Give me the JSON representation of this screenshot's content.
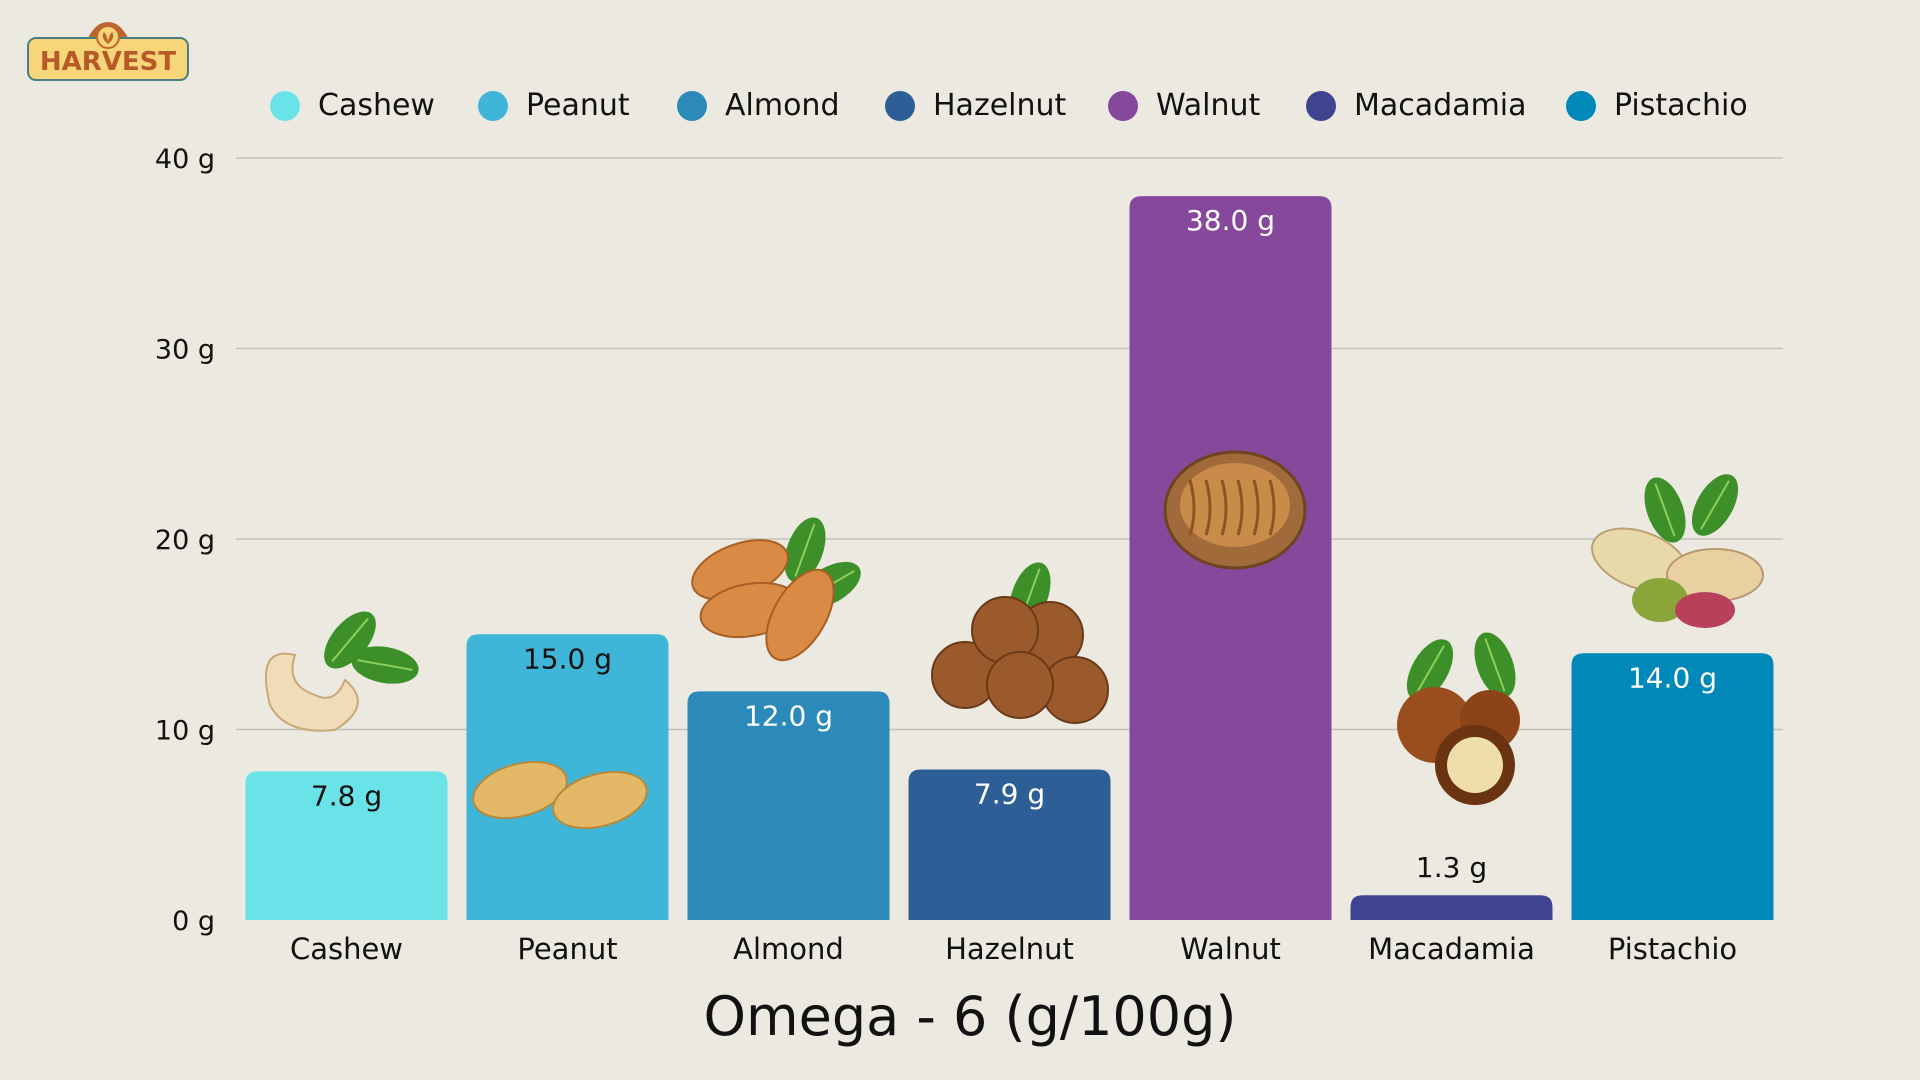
{
  "logo_text": "HARVEST",
  "chart_data": {
    "type": "bar",
    "title": "Omega - 6 (g/100g)",
    "xlabel": "Omega - 6 (g/100g)",
    "ylabel": "",
    "categories": [
      "Cashew",
      "Peanut",
      "Almond",
      "Hazelnut",
      "Walnut",
      "Macadamia",
      "Pistachio"
    ],
    "values": [
      7.8,
      15.0,
      12.0,
      7.9,
      38.0,
      1.3,
      14.0
    ],
    "data_labels": [
      "7.8 g",
      "15.0 g",
      "12.0 g",
      "7.9 g",
      "38.0 g",
      "1.3 g",
      "14.0 g"
    ],
    "colors": [
      "#6ae3e8",
      "#3fb6d8",
      "#2b8aba",
      "#2e5e96",
      "#86489b",
      "#3f4490",
      "#0088b9"
    ],
    "ylim": [
      0,
      40
    ],
    "yticks": [
      0,
      10,
      20,
      30,
      40
    ],
    "ytick_labels": [
      "0 g",
      "10 g",
      "20 g",
      "30 g",
      "40 g"
    ],
    "grid": true,
    "legend_position": "top",
    "legend": [
      "Cashew",
      "Peanut",
      "Almond",
      "Hazelnut",
      "Walnut",
      "Macadamia",
      "Pistachio"
    ],
    "icons": [
      "cashew-icon",
      "peanut-icon",
      "almond-icon",
      "hazelnut-icon",
      "walnut-icon",
      "macadamia-icon",
      "pistachio-icon"
    ]
  }
}
